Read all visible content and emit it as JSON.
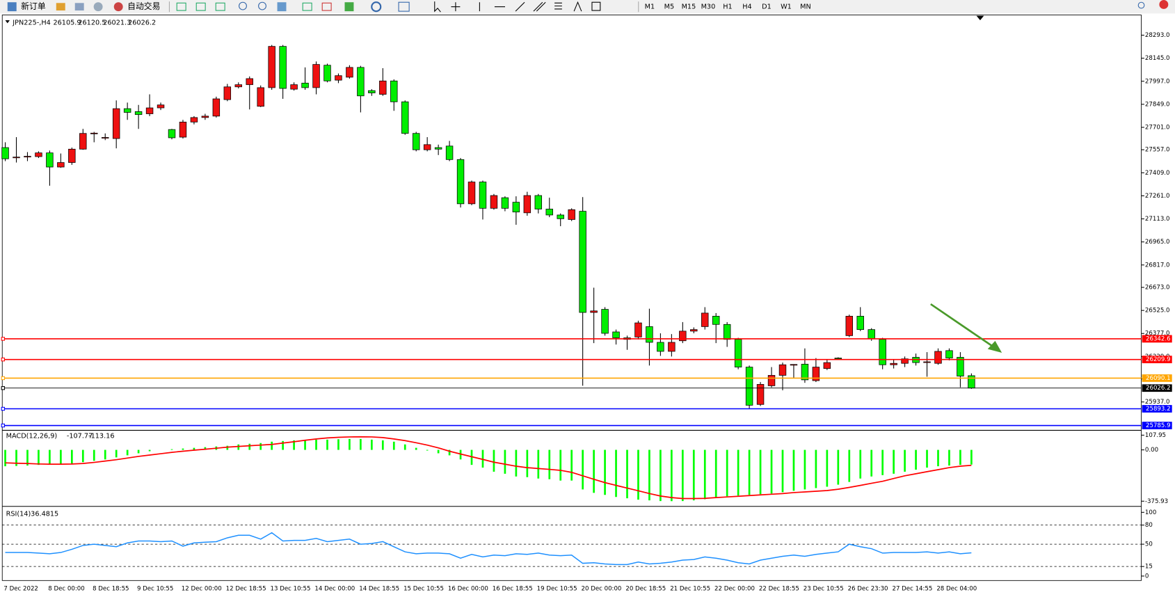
{
  "toolbar": {
    "new_order": "新订单",
    "auto_trading": "自动交易",
    "timeframes": [
      "M1",
      "M5",
      "M15",
      "M30",
      "H1",
      "H4",
      "D1",
      "W1",
      "MN"
    ]
  },
  "chart_data": [
    {
      "type": "candlestick",
      "title": "JPN225-,H4",
      "up_color": "#ee1111",
      "down_color": "#00ee00",
      "grid": false,
      "categories": [
        "7 Dec 2022",
        null,
        null,
        null,
        "8 Dec 00:00",
        null,
        null,
        null,
        "8 Dec 18:55",
        null,
        null,
        null,
        "9 Dec 10:55",
        null,
        null,
        null,
        "12 Dec 00:00",
        null,
        null,
        null,
        "12 Dec 18:55",
        null,
        null,
        null,
        "13 Dec 10:55",
        null,
        null,
        null,
        "14 Dec 00:00",
        null,
        null,
        null,
        "14 Dec 18:55",
        null,
        null,
        null,
        "15 Dec 10:55",
        null,
        null,
        null,
        "16 Dec 00:00",
        null,
        null,
        null,
        "16 Dec 18:55",
        null,
        null,
        null,
        "19 Dec 10:55",
        null,
        null,
        null,
        "20 Dec 00:00",
        null,
        null,
        null,
        "20 Dec 18:55",
        null,
        null,
        null,
        "21 Dec 10:55",
        null,
        null,
        null,
        "22 Dec 00:00",
        null,
        null,
        null,
        "22 Dec 18:55",
        null,
        null,
        null,
        "23 Dec 10:55",
        null,
        null,
        null,
        "26 Dec 23:30",
        null,
        null,
        null,
        "27 Dec 14:55",
        null,
        null,
        null,
        "28 Dec 04:00",
        null,
        null,
        null
      ],
      "open": [
        27571,
        27508,
        27513,
        27513,
        27537,
        27446,
        27475,
        27561,
        27662,
        27634,
        27629,
        27821,
        27802,
        27788,
        27826,
        27687,
        27638,
        27735,
        27764,
        27773,
        27879,
        27961,
        27975,
        27836,
        27956,
        28221,
        27946,
        27985,
        27956,
        28100,
        28004,
        28023,
        28086,
        27937,
        27913,
        27999,
        27865,
        27662,
        27557,
        27571,
        27581,
        27494,
        27210,
        27350,
        27181,
        27249,
        27220,
        27152,
        27263,
        27176,
        27138,
        27109,
        27162,
        26512,
        26532,
        26387,
        26349,
        26354,
        26421,
        26320,
        26262,
        26330,
        26392,
        26421,
        26488,
        26435,
        26339,
        26161,
        25921,
        26041,
        26108,
        26176,
        26180,
        26074,
        26152,
        26219,
        26363,
        26488,
        26402,
        26339,
        26176,
        26185,
        26224,
        26190,
        26185,
        26267,
        26224,
        26105.9
      ],
      "high": [
        27605,
        27638,
        27542,
        27547,
        27552,
        27533,
        27571,
        27691,
        27672,
        27662,
        27874,
        27860,
        27845,
        27913,
        27860,
        27691,
        27749,
        27773,
        27788,
        27898,
        27980,
        27990,
        28028,
        27970,
        28230,
        28230,
        27990,
        28086,
        28124,
        28110,
        28047,
        28100,
        28096,
        27946,
        28081,
        28009,
        27874,
        27672,
        27638,
        27590,
        27614,
        27504,
        27359,
        27359,
        27273,
        27258,
        27258,
        27287,
        27273,
        27249,
        27148,
        27181,
        27253,
        26671,
        26546,
        26402,
        26363,
        26459,
        26536,
        26378,
        26373,
        26450,
        26416,
        26546,
        26508,
        26450,
        26349,
        26171,
        26065,
        26161,
        26190,
        26180,
        26281,
        26219,
        26209,
        26224,
        26498,
        26546,
        26411,
        26349,
        26209,
        26229,
        26248,
        26257,
        26281,
        26281,
        26257,
        26120.5
      ],
      "low": [
        27484,
        27475,
        27484,
        27504,
        27326,
        27441,
        27460,
        27557,
        27605,
        27619,
        27566,
        27749,
        27691,
        27773,
        27812,
        27624,
        27629,
        27720,
        27749,
        27764,
        27869,
        27951,
        27816,
        27831,
        27942,
        27884,
        27937,
        27942,
        27913,
        27990,
        27985,
        28014,
        27797,
        27903,
        27903,
        27807,
        27653,
        27547,
        27547,
        27523,
        27484,
        27186,
        27201,
        27109,
        27172,
        27162,
        27075,
        27133,
        27148,
        27124,
        27066,
        27099,
        26041,
        26315,
        26363,
        26306,
        26272,
        26339,
        26171,
        26233,
        26229,
        26315,
        26378,
        26402,
        26315,
        26291,
        26147,
        25892,
        25911,
        26031,
        26012,
        26089,
        26060,
        26065,
        26142,
        26209,
        26354,
        26392,
        26330,
        26147,
        26152,
        26161,
        26171,
        26099,
        26176,
        26204,
        26031,
        26021.3
      ],
      "close": [
        27499,
        27510,
        27515,
        27537,
        27446,
        27475,
        27561,
        27662,
        27664,
        27636,
        27821,
        27797,
        27783,
        27826,
        27845,
        27634,
        27735,
        27764,
        27773,
        27884,
        27961,
        27975,
        28014,
        27956,
        28221,
        27951,
        27975,
        27956,
        28105,
        27999,
        28033,
        28086,
        27903,
        27922,
        27999,
        27865,
        27662,
        27557,
        27590,
        27561,
        27494,
        27210,
        27350,
        27181,
        27263,
        27181,
        27157,
        27263,
        27176,
        27138,
        27114,
        27172,
        26512,
        26522,
        26378,
        26349,
        26339,
        26445,
        26320,
        26262,
        26320,
        26392,
        26402,
        26508,
        26435,
        26339,
        26161,
        25916,
        26050,
        26108,
        26176,
        26178,
        26079,
        26161,
        26190,
        26214,
        26488,
        26402,
        26344,
        26176,
        26185,
        26214,
        26190,
        26195,
        26262,
        26219,
        26103,
        26026.2
      ],
      "ylim": [
        25762,
        28413
      ],
      "yticks": [
        {
          "value": 28293,
          "label": "28293.0"
        },
        {
          "value": 28145,
          "label": "28145.0"
        },
        {
          "value": 27997,
          "label": "27997.0"
        },
        {
          "value": 27849,
          "label": "27849.0"
        },
        {
          "value": 27701,
          "label": "27701.0"
        },
        {
          "value": 27557,
          "label": "27557.0"
        },
        {
          "value": 27409,
          "label": "27409.0"
        },
        {
          "value": 27261,
          "label": "27261.0"
        },
        {
          "value": 27113,
          "label": "27113.0"
        },
        {
          "value": 26965,
          "label": "26965.0"
        },
        {
          "value": 26817,
          "label": "26817.0"
        },
        {
          "value": 26673,
          "label": "26673.0"
        },
        {
          "value": 26525,
          "label": "26525.0"
        },
        {
          "value": 26377,
          "label": "26377.0"
        },
        {
          "value": 26229,
          "label": "26229.0"
        },
        {
          "value": 26085,
          "label": "26085.0"
        },
        {
          "value": 25937,
          "label": "25937.0"
        }
      ],
      "hlines": [
        {
          "value": 26342.6,
          "color": "#ff0000"
        },
        {
          "value": 26209.9,
          "color": "#ff0000"
        },
        {
          "value": 26090.1,
          "color": "#ffa500"
        },
        {
          "value": 26026.2,
          "color": "#000000"
        },
        {
          "value": 25893.2,
          "color": "#0000ff"
        },
        {
          "value": 25785.9,
          "color": "#0000ff"
        }
      ]
    },
    {
      "type": "macd",
      "title": "MACD(12,26,9)",
      "hist_color": "#00ff00",
      "signal_color": "#ff0000",
      "histogram": [
        -120,
        -118,
        -115,
        -110,
        -108,
        -105,
        -100,
        -90,
        -80,
        -70,
        -55,
        -40,
        -25,
        -10,
        0,
        5,
        10,
        15,
        20,
        25,
        30,
        40,
        45,
        50,
        60,
        65,
        70,
        70,
        75,
        75,
        78,
        80,
        80,
        75,
        70,
        60,
        40,
        15,
        -5,
        -25,
        -40,
        -70,
        -110,
        -130,
        -160,
        -175,
        -195,
        -200,
        -210,
        -215,
        -225,
        -225,
        -290,
        -315,
        -330,
        -345,
        -355,
        -365,
        -370,
        -375,
        -376,
        -375,
        -370,
        -362,
        -350,
        -340,
        -335,
        -330,
        -325,
        -320,
        -310,
        -300,
        -290,
        -280,
        -270,
        -255,
        -235,
        -210,
        -195,
        -185,
        -175,
        -160,
        -145,
        -130,
        -120,
        -115,
        -110,
        -107.77
      ],
      "signal": [
        -95,
        -98,
        -100,
        -103,
        -105,
        -105,
        -104,
        -100,
        -92,
        -82,
        -72,
        -60,
        -48,
        -38,
        -28,
        -18,
        -10,
        -2,
        5,
        12,
        20,
        25,
        30,
        35,
        40,
        50,
        60,
        70,
        80,
        88,
        92,
        95,
        96,
        95,
        90,
        80,
        68,
        52,
        35,
        15,
        -10,
        -30,
        -50,
        -70,
        -90,
        -105,
        -120,
        -130,
        -137,
        -143,
        -150,
        -165,
        -190,
        -215,
        -240,
        -260,
        -280,
        -300,
        -320,
        -338,
        -350,
        -357,
        -357,
        -355,
        -350,
        -345,
        -340,
        -335,
        -330,
        -325,
        -320,
        -313,
        -308,
        -303,
        -298,
        -288,
        -275,
        -260,
        -245,
        -230,
        -210,
        -190,
        -175,
        -160,
        -145,
        -130,
        -120,
        -113.16
      ],
      "ylim": [
        -403,
        135
      ],
      "yticks": [
        107.95,
        {
          "value": 0,
          "label": "0.00"
        },
        -375.93
      ]
    },
    {
      "type": "rsi",
      "title": "RSI(14)",
      "color": "#1e90ff",
      "values": [
        37,
        37,
        37,
        36,
        35,
        37,
        42,
        48,
        50,
        48,
        46,
        52,
        55,
        55,
        54,
        55,
        47,
        52,
        53,
        54,
        60,
        64,
        64,
        58,
        68,
        55,
        56,
        56,
        59,
        54,
        56,
        58,
        50,
        51,
        54,
        46,
        38,
        35,
        36,
        36,
        35,
        28,
        34,
        30,
        33,
        32,
        35,
        34,
        36,
        33,
        32,
        33,
        20,
        21,
        19,
        18,
        18,
        22,
        19,
        20,
        22,
        25,
        26,
        30,
        28,
        25,
        21,
        19,
        25,
        28,
        31,
        33,
        31,
        34,
        36,
        38,
        50,
        46,
        43,
        36,
        37,
        37,
        37,
        38,
        36,
        38,
        35,
        36.4815
      ],
      "ylim": [
        -7,
        107
      ],
      "yticks": [
        100,
        80,
        50,
        15,
        0
      ],
      "levels": [
        80,
        50,
        15
      ]
    }
  ]
}
